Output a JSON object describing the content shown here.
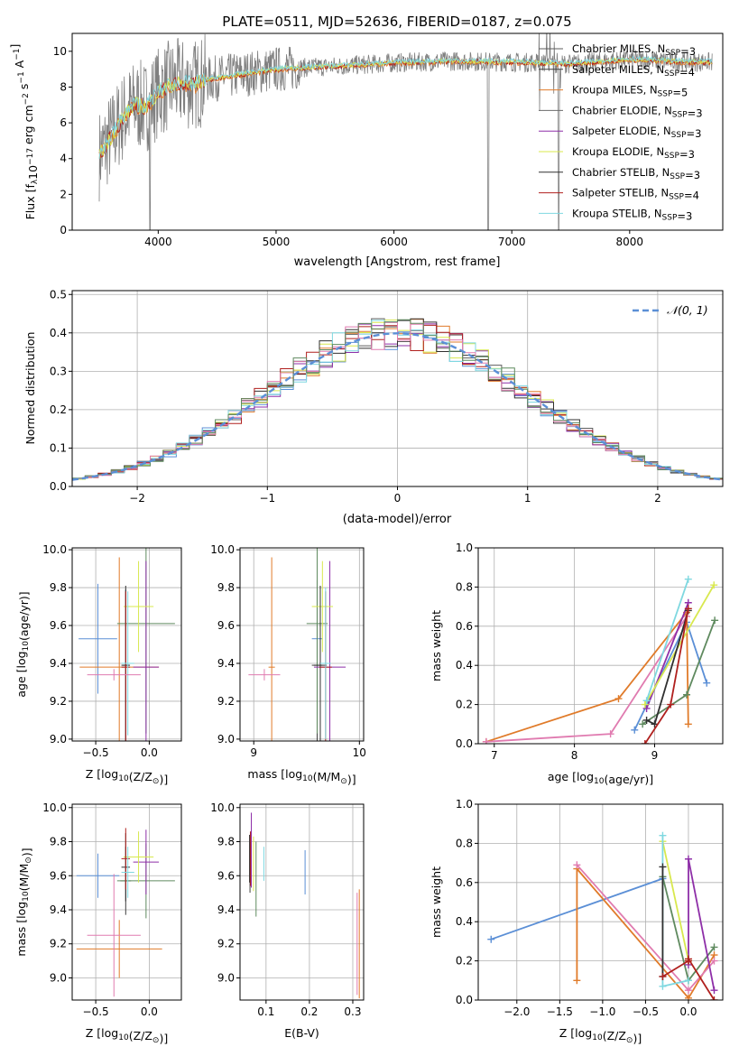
{
  "title": "PLATE=0511, MJD=52636, FIBERID=0187, z=0.075",
  "colors": {
    "Chabrier MILES": "#5e5e5e",
    "Salpeter MILES": "#3f3f3f",
    "Kroupa MILES": "#e07b2a",
    "Chabrier ELODIE": "#6b6b6b",
    "Salpeter ELODIE": "#8e2fa8",
    "Kroupa ELODIE": "#d8e84e",
    "Chabrier STELIB": "#303030",
    "Salpeter STELIB": "#b0201e",
    "Kroupa STELIB": "#7fd8e0",
    "data": "#7f7f7f",
    "normal": "#5b8fd6",
    "grid": "#b0b0b0"
  },
  "chart_data": [
    {
      "type": "line",
      "title": "PLATE=0511, MJD=52636, FIBERID=0187, z=0.075",
      "xlabel": "wavelength [Angstrom, rest frame]",
      "ylabel_main": "Flux [f",
      "ylabel_sub": "λ",
      "ylabel_rest": "10",
      "ylabel_exp": "−17",
      "ylabel_tail": " erg cm",
      "ylabel_exp2": "−2",
      "ylabel_tail2": " s",
      "ylabel_exp3": "−1",
      "ylabel_tail3": " A",
      "ylabel_exp4": "−1",
      "ylabel_end": "]",
      "xlim": [
        3270,
        8790
      ],
      "ylim": [
        0,
        11
      ],
      "xticks": [
        4000,
        5000,
        6000,
        7000,
        8000
      ],
      "yticks": [
        0,
        2,
        4,
        6,
        8,
        10
      ],
      "legend_position": "right",
      "legend": [
        {
          "name": "Chabrier MILES",
          "n": "3",
          "prefix": "N",
          "sub": "SSP"
        },
        {
          "name": "Salpeter MILES",
          "n": "4",
          "prefix": "N",
          "sub": "SSP"
        },
        {
          "name": "Kroupa MILES",
          "n": "5",
          "prefix": "N",
          "sub": "SSP"
        },
        {
          "name": "Chabrier ELODIE",
          "n": "3",
          "prefix": "N",
          "sub": "SSP"
        },
        {
          "name": "Salpeter ELODIE",
          "n": "3",
          "prefix": "N",
          "sub": "SSP"
        },
        {
          "name": "Kroupa ELODIE",
          "n": "3",
          "prefix": "N",
          "sub": "SSP"
        },
        {
          "name": "Chabrier STELIB",
          "n": "3",
          "prefix": "N",
          "sub": "SSP"
        },
        {
          "name": "Salpeter STELIB",
          "n": "4",
          "prefix": "N",
          "sub": "SSP"
        },
        {
          "name": "Kroupa STELIB",
          "n": "3",
          "prefix": "N",
          "sub": "SSP"
        }
      ],
      "continuum": {
        "x": [
          3500,
          3600,
          3700,
          3800,
          3900,
          4000,
          4100,
          4200,
          4300,
          4400,
          4500,
          4700,
          5000,
          5300,
          5600,
          6000,
          6500,
          7000,
          7500,
          8000,
          8500
        ],
        "y": [
          4.2,
          5.2,
          6.3,
          7.0,
          6.9,
          7.7,
          8.1,
          8.2,
          8.1,
          8.4,
          8.5,
          8.7,
          9.0,
          9.1,
          9.2,
          9.35,
          9.45,
          9.4,
          9.3,
          9.55,
          9.4
        ]
      },
      "range": [
        3500,
        8700
      ]
    },
    {
      "type": "histogram",
      "xlabel": "(data-model)/error",
      "ylabel": "Normed distribution",
      "xlim": [
        -2.5,
        2.5
      ],
      "ylim": [
        0,
        0.51
      ],
      "xticks": [
        -2,
        -1,
        0,
        1,
        2
      ],
      "xtick_labels": [
        "−2",
        "−1",
        "0",
        "1",
        "2"
      ],
      "yticks": [
        0.0,
        0.1,
        0.2,
        0.3,
        0.4,
        0.5
      ],
      "ytick_labels": [
        "0.0",
        "0.1",
        "0.2",
        "0.3",
        "0.4",
        "0.5"
      ],
      "bin_width": 0.1,
      "bin_start": -2.5,
      "legend": [
        {
          "name": "𝒩(0, 1)"
        }
      ],
      "legend_position": "top-right"
    },
    {
      "type": "scatter",
      "panel": "age-vs-Z",
      "xlabel": "Z [log",
      "xlabel_sub": "10",
      "xlabel_rest": "(Z/Z",
      "xlabel_sub2": "⊙",
      "xlabel_end": ")]",
      "ylabel": "age  [log",
      "ylabel_sub": "10",
      "ylabel_rest": "(age/yr)]",
      "xlim": [
        -0.72,
        0.3
      ],
      "ylim": [
        8.99,
        10.01
      ],
      "xticks": [
        -0.5,
        0.0
      ],
      "xtick_labels": [
        "−0.5",
        "0.0"
      ],
      "yticks": [
        9.0,
        9.2,
        9.4,
        9.6,
        9.8,
        10.0
      ],
      "ytick_labels": [
        "9.0",
        "9.2",
        "9.4",
        "9.6",
        "9.8",
        "10.0"
      ],
      "points": [
        {
          "model": "Chabrier MILES",
          "x": -0.48,
          "xerr": 0.18,
          "y": 9.53,
          "yerr": 0.29,
          "color": "#5b8fd6"
        },
        {
          "model": "Salpeter MILES",
          "x": -0.22,
          "xerr": 0.03,
          "y": 9.39,
          "yerr": 0.4,
          "color": "#3f3f3f"
        },
        {
          "model": "Kroupa MILES",
          "x": -0.28,
          "xerr": 0.37,
          "y": 9.38,
          "yerr": 0.58,
          "color": "#e07b2a"
        },
        {
          "model": "Chabrier ELODIE",
          "x": -0.03,
          "xerr": 0.27,
          "y": 9.61,
          "yerr": 0.58,
          "color": "#5f8a5f"
        },
        {
          "model": "Salpeter ELODIE",
          "x": -0.03,
          "xerr": 0.12,
          "y": 9.38,
          "yerr": 0.56,
          "color": "#8e2fa8"
        },
        {
          "model": "Kroupa ELODIE",
          "x": -0.1,
          "xerr": 0.14,
          "y": 9.7,
          "yerr": 0.24,
          "color": "#d8e84e"
        },
        {
          "model": "Chabrier STELIB",
          "x": -0.22,
          "xerr": 0.04,
          "y": 9.39,
          "yerr": 0.42,
          "color": "#303030"
        },
        {
          "model": "Salpeter STELIB",
          "x": -0.22,
          "xerr": 0.04,
          "y": 9.38,
          "yerr": 0.4,
          "color": "#b0201e"
        },
        {
          "model": "Kroupa STELIB",
          "x": -0.2,
          "xerr": 0.06,
          "y": 9.4,
          "yerr": 0.38,
          "color": "#7fd8e0"
        },
        {
          "model": "extra",
          "x": -0.33,
          "xerr": 0.25,
          "y": 9.34,
          "yerr": 0.03,
          "color": "#e07bb0"
        }
      ]
    },
    {
      "type": "scatter",
      "panel": "age-vs-mass",
      "xlabel": "mass [log",
      "xlabel_sub": "10",
      "xlabel_rest": "(M/M",
      "xlabel_sub2": "⊙",
      "xlabel_end": ")]",
      "xlim": [
        8.87,
        10.04
      ],
      "ylim": [
        8.99,
        10.01
      ],
      "xticks": [
        9,
        10
      ],
      "xtick_labels": [
        "9",
        "10"
      ],
      "yticks": [
        9.0,
        9.2,
        9.4,
        9.6,
        9.8,
        10.0
      ],
      "ytick_labels": [
        "9.0",
        "9.2",
        "9.4",
        "9.6",
        "9.8",
        "10.0"
      ],
      "points": [
        {
          "model": "Chabrier MILES",
          "x": 9.6,
          "xerr": 0.05,
          "y": 9.53,
          "yerr": 0.1,
          "color": "#5b8fd6"
        },
        {
          "model": "Salpeter MILES",
          "x": 9.6,
          "xerr": 0.05,
          "y": 9.39,
          "yerr": 0.45,
          "color": "#3f3f3f"
        },
        {
          "model": "Kroupa MILES",
          "x": 9.17,
          "xerr": 0.03,
          "y": 9.38,
          "yerr": 0.58,
          "color": "#e07b2a"
        },
        {
          "model": "Chabrier ELODIE",
          "x": 9.6,
          "xerr": 0.1,
          "y": 9.61,
          "yerr": 0.58,
          "color": "#5f8a5f"
        },
        {
          "model": "Salpeter ELODIE",
          "x": 9.72,
          "xerr": 0.15,
          "y": 9.38,
          "yerr": 0.56,
          "color": "#8e2fa8"
        },
        {
          "model": "Kroupa ELODIE",
          "x": 9.65,
          "xerr": 0.1,
          "y": 9.7,
          "yerr": 0.24,
          "color": "#d8e84e"
        },
        {
          "model": "Chabrier STELIB",
          "x": 9.63,
          "xerr": 0.06,
          "y": 9.39,
          "yerr": 0.42,
          "color": "#303030"
        },
        {
          "model": "Salpeter STELIB",
          "x": 9.68,
          "xerr": 0.06,
          "y": 9.38,
          "yerr": 0.4,
          "color": "#b0201e"
        },
        {
          "model": "Kroupa STELIB",
          "x": 9.68,
          "xerr": 0.05,
          "y": 9.4,
          "yerr": 0.4,
          "color": "#7fd8e0"
        },
        {
          "model": "extra",
          "x": 9.1,
          "xerr": 0.15,
          "y": 9.34,
          "yerr": 0.03,
          "color": "#e07bb0"
        }
      ]
    },
    {
      "type": "line",
      "panel": "mass-weight-vs-age",
      "xlabel": "age  [log",
      "xlabel_sub": "10",
      "xlabel_rest": "(age/yr)]",
      "ylabel": "mass weight",
      "xlim": [
        6.8,
        9.85
      ],
      "ylim": [
        0,
        1
      ],
      "xticks": [
        7,
        8,
        9
      ],
      "xtick_labels": [
        "7",
        "8",
        "9"
      ],
      "yticks": [
        0.0,
        0.2,
        0.4,
        0.6,
        0.8,
        1.0
      ],
      "ytick_labels": [
        "0.0",
        "0.2",
        "0.4",
        "0.6",
        "0.8",
        "1.0"
      ],
      "series": [
        {
          "model": "Chabrier MILES",
          "color": "#5b8fd6",
          "x": [
            8.75,
            9.4,
            9.65
          ],
          "y": [
            0.07,
            0.62,
            0.31
          ]
        },
        {
          "model": "Kroupa MILES",
          "color": "#e07b2a",
          "x": [
            6.9,
            8.55,
            9.4,
            9.42
          ],
          "y": [
            0.01,
            0.23,
            0.67,
            0.1
          ]
        },
        {
          "model": "extra",
          "color": "#e07bb0",
          "x": [
            6.9,
            8.45,
            9.4
          ],
          "y": [
            0.01,
            0.05,
            0.65
          ]
        },
        {
          "model": "Chabrier ELODIE",
          "color": "#5f8a5f",
          "x": [
            8.85,
            9.4,
            9.75
          ],
          "y": [
            0.1,
            0.25,
            0.63
          ]
        },
        {
          "model": "Salpeter ELODIE",
          "color": "#8e2fa8",
          "x": [
            8.9,
            9.42
          ],
          "y": [
            0.18,
            0.72
          ]
        },
        {
          "model": "Kroupa ELODIE",
          "color": "#d8e84e",
          "x": [
            8.88,
            9.74
          ],
          "y": [
            0.2,
            0.81
          ]
        },
        {
          "model": "Kroupa STELIB",
          "color": "#7fd8e0",
          "x": [
            8.9,
            9.42
          ],
          "y": [
            0.22,
            0.84
          ]
        },
        {
          "model": "Chabrier STELIB",
          "color": "#303030",
          "x": [
            8.9,
            9.0,
            9.42
          ],
          "y": [
            0.12,
            0.1,
            0.68
          ]
        },
        {
          "model": "Salpeter STELIB",
          "color": "#b0201e",
          "x": [
            8.88,
            9.2,
            9.42
          ],
          "y": [
            0.0,
            0.2,
            0.69
          ]
        }
      ]
    },
    {
      "type": "scatter",
      "panel": "mass-vs-Z",
      "xlabel": "Z [log",
      "xlabel_sub": "10",
      "xlabel_rest": "(Z/Z",
      "xlabel_sub2": "⊙",
      "xlabel_end": ")]",
      "ylabel": "mass [log",
      "ylabel_sub": "10",
      "ylabel_rest": "(M/M",
      "ylabel_sub2": "⊙",
      "ylabel_end": ")]",
      "xlim": [
        -0.72,
        0.3
      ],
      "ylim": [
        8.87,
        10.02
      ],
      "xticks": [
        -0.5,
        0.0
      ],
      "xtick_labels": [
        "−0.5",
        "0.0"
      ],
      "yticks": [
        9.0,
        9.2,
        9.4,
        9.6,
        9.8,
        10.0
      ],
      "ytick_labels": [
        "9.0",
        "9.2",
        "9.4",
        "9.6",
        "9.8",
        "10.0"
      ],
      "points": [
        {
          "model": "Chabrier MILES",
          "x": -0.48,
          "xerr": 0.2,
          "y": 9.6,
          "yerr": 0.13,
          "color": "#5b8fd6"
        },
        {
          "model": "Salpeter MILES",
          "x": -0.22,
          "xerr": 0.05,
          "y": 9.57,
          "yerr": 0.2,
          "color": "#3f3f3f"
        },
        {
          "model": "Kroupa MILES",
          "x": -0.28,
          "xerr": 0.4,
          "y": 9.17,
          "yerr": 0.17,
          "color": "#e07b2a"
        },
        {
          "model": "Chabrier ELODIE",
          "x": -0.03,
          "xerr": 0.27,
          "y": 9.57,
          "yerr": 0.22,
          "color": "#5f8a5f"
        },
        {
          "model": "Salpeter ELODIE",
          "x": -0.03,
          "xerr": 0.12,
          "y": 9.68,
          "yerr": 0.19,
          "color": "#8e2fa8"
        },
        {
          "model": "Kroupa ELODIE",
          "x": -0.1,
          "xerr": 0.14,
          "y": 9.71,
          "yerr": 0.15,
          "color": "#d8e84e"
        },
        {
          "model": "Chabrier STELIB",
          "x": -0.22,
          "xerr": 0.04,
          "y": 9.65,
          "yerr": 0.2,
          "color": "#303030"
        },
        {
          "model": "Salpeter STELIB",
          "x": -0.22,
          "xerr": 0.04,
          "y": 9.7,
          "yerr": 0.18,
          "color": "#b0201e"
        },
        {
          "model": "Kroupa STELIB",
          "x": -0.2,
          "xerr": 0.06,
          "y": 9.62,
          "yerr": 0.15,
          "color": "#7fd8e0"
        },
        {
          "model": "extra",
          "x": -0.33,
          "xerr": 0.25,
          "y": 9.25,
          "yerr": 0.36,
          "color": "#e07bb0"
        }
      ]
    },
    {
      "type": "scatter",
      "panel": "mass-vs-ebv",
      "xlabel": "E(B-V)",
      "xlim": [
        0.04,
        0.325
      ],
      "ylim": [
        8.87,
        10.02
      ],
      "xticks": [
        0.1,
        0.2,
        0.3
      ],
      "xtick_labels": [
        "0.1",
        "0.2",
        "0.3"
      ],
      "yticks": [
        9.0,
        9.2,
        9.4,
        9.6,
        9.8,
        10.0
      ],
      "ytick_labels": [
        "9.0",
        "9.2",
        "9.4",
        "9.6",
        "9.8",
        "10.0"
      ],
      "points": [
        {
          "model": "Chabrier MILES",
          "x": 0.19,
          "xerr": 0.0,
          "y": 9.62,
          "yerr": 0.13,
          "color": "#5b8fd6"
        },
        {
          "model": "Salpeter MILES",
          "x": 0.063,
          "xerr": 0.0,
          "y": 9.65,
          "yerr": 0.15,
          "color": "#3f3f3f"
        },
        {
          "model": "Kroupa MILES",
          "x": 0.315,
          "xerr": 0.0,
          "y": 9.2,
          "yerr": 0.32,
          "color": "#e07b2a"
        },
        {
          "model": "Chabrier ELODIE",
          "x": 0.077,
          "xerr": 0.0,
          "y": 9.58,
          "yerr": 0.22,
          "color": "#5f8a5f"
        },
        {
          "model": "Salpeter ELODIE",
          "x": 0.066,
          "xerr": 0.0,
          "y": 9.75,
          "yerr": 0.22,
          "color": "#8e2fa8"
        },
        {
          "model": "Kroupa ELODIE",
          "x": 0.071,
          "xerr": 0.0,
          "y": 9.67,
          "yerr": 0.16,
          "color": "#d8e84e"
        },
        {
          "model": "Chabrier STELIB",
          "x": 0.062,
          "xerr": 0.0,
          "y": 9.7,
          "yerr": 0.14,
          "color": "#303030"
        },
        {
          "model": "Salpeter STELIB",
          "x": 0.064,
          "xerr": 0.0,
          "y": 9.7,
          "yerr": 0.16,
          "color": "#b0201e"
        },
        {
          "model": "Kroupa STELIB",
          "x": 0.095,
          "xerr": 0.0,
          "y": 9.67,
          "yerr": 0.1,
          "color": "#7fd8e0"
        },
        {
          "model": "extra",
          "x": 0.31,
          "xerr": 0.0,
          "y": 9.2,
          "yerr": 0.3,
          "color": "#e07bb0"
        }
      ]
    },
    {
      "type": "line",
      "panel": "mass-weight-vs-Z",
      "xlabel": "Z [log",
      "xlabel_sub": "10",
      "xlabel_rest": "(Z/Z",
      "xlabel_sub2": "⊙",
      "xlabel_end": ")]",
      "ylabel": "mass weight",
      "xlim": [
        -2.45,
        0.4
      ],
      "ylim": [
        0,
        1
      ],
      "xticks": [
        -2.0,
        -1.5,
        -1.0,
        -0.5,
        0.0
      ],
      "xtick_labels": [
        "−2.0",
        "−1.5",
        "−1.0",
        "−0.5",
        "0.0"
      ],
      "yticks": [
        0.0,
        0.2,
        0.4,
        0.6,
        0.8,
        1.0
      ],
      "ytick_labels": [
        "0.0",
        "0.2",
        "0.4",
        "0.6",
        "0.8",
        "1.0"
      ],
      "series": [
        {
          "model": "Chabrier MILES",
          "color": "#5b8fd6",
          "x": [
            -2.3,
            -0.3
          ],
          "y": [
            0.31,
            0.62
          ]
        },
        {
          "model": "Kroupa MILES",
          "color": "#e07b2a",
          "x": [
            -1.3,
            -1.3,
            0.0,
            0.3
          ],
          "y": [
            0.1,
            0.67,
            0.01,
            0.23
          ]
        },
        {
          "model": "extra",
          "color": "#e07bb0",
          "x": [
            -1.3,
            0.0,
            0.3
          ],
          "y": [
            0.69,
            0.05,
            0.2
          ]
        },
        {
          "model": "Chabrier ELODIE",
          "color": "#5f8a5f",
          "x": [
            -0.3,
            0.0,
            0.3
          ],
          "y": [
            0.63,
            0.1,
            0.27
          ]
        },
        {
          "model": "Salpeter ELODIE",
          "color": "#8e2fa8",
          "x": [
            0.0,
            0.0,
            0.3
          ],
          "y": [
            0.18,
            0.72,
            0.05
          ]
        },
        {
          "model": "Kroupa ELODIE",
          "color": "#d8e84e",
          "x": [
            -0.3,
            0.0
          ],
          "y": [
            0.81,
            0.2
          ]
        },
        {
          "model": "Kroupa STELIB",
          "color": "#7fd8e0",
          "x": [
            -0.3,
            -0.3,
            0.0
          ],
          "y": [
            0.84,
            0.07,
            0.1
          ]
        },
        {
          "model": "Chabrier STELIB",
          "color": "#303030",
          "x": [
            -0.3,
            -0.3
          ],
          "y": [
            0.12,
            0.68
          ]
        },
        {
          "model": "Salpeter STELIB",
          "color": "#b0201e",
          "x": [
            -0.3,
            0.0,
            0.0,
            0.3
          ],
          "y": [
            0.12,
            0.2,
            0.21,
            0.0
          ]
        }
      ]
    }
  ]
}
